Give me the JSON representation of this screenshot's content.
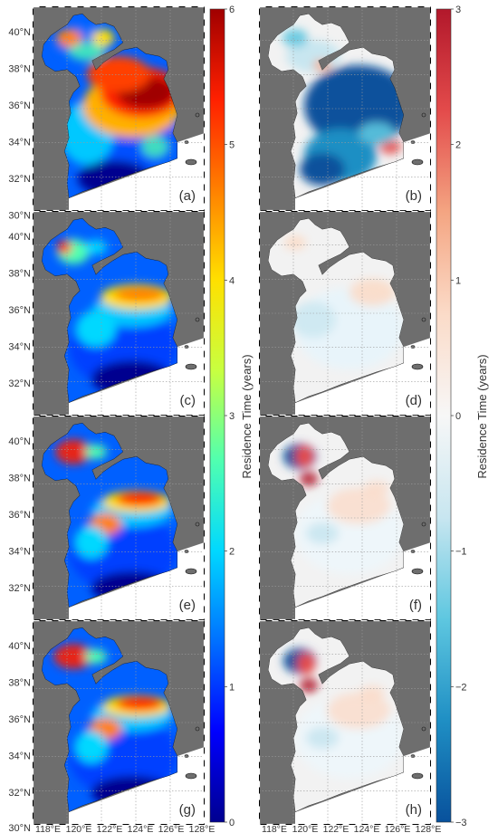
{
  "figure": {
    "left_column": {
      "colorbar": {
        "label": "Residence Time (years)",
        "ticks": [
          "0",
          "1",
          "2",
          "3",
          "4",
          "5",
          "6"
        ],
        "colormap": [
          "#00008f",
          "#0000ff",
          "#0070ff",
          "#00d8ff",
          "#50ffb0",
          "#c8ff40",
          "#ffe000",
          "#ff8000",
          "#ff2000",
          "#a00000"
        ]
      },
      "panels": [
        {
          "label": "(a)"
        },
        {
          "label": "(c)"
        },
        {
          "label": "(e)"
        },
        {
          "label": "(g)"
        }
      ]
    },
    "right_column": {
      "colorbar": {
        "label": "Residence Time (years)",
        "ticks": [
          "3",
          "2",
          "1",
          "0",
          "−1",
          "−2",
          "−3"
        ],
        "colormap": [
          "#b2182b",
          "#e34b4b",
          "#f4a582",
          "#fbdbc8",
          "#f7f7f7",
          "#c8e6f0",
          "#5ec7e0",
          "#1f8fc4",
          "#08519c"
        ]
      },
      "panels": [
        {
          "label": "(b)"
        },
        {
          "label": "(d)"
        },
        {
          "label": "(f)"
        },
        {
          "label": "(h)"
        }
      ]
    },
    "y_ticks": [
      "40°N",
      "38°N",
      "36°N",
      "34°N",
      "32°N",
      "30°N"
    ],
    "x_ticks": [
      "118°E",
      "120°E",
      "122°E",
      "124°E",
      "126°E",
      "128°E"
    ],
    "colors": {
      "land": "#6e6e6e",
      "ocean_outside": "#ffffff",
      "grid": "#9a9a9a",
      "frame": "#000000"
    }
  }
}
